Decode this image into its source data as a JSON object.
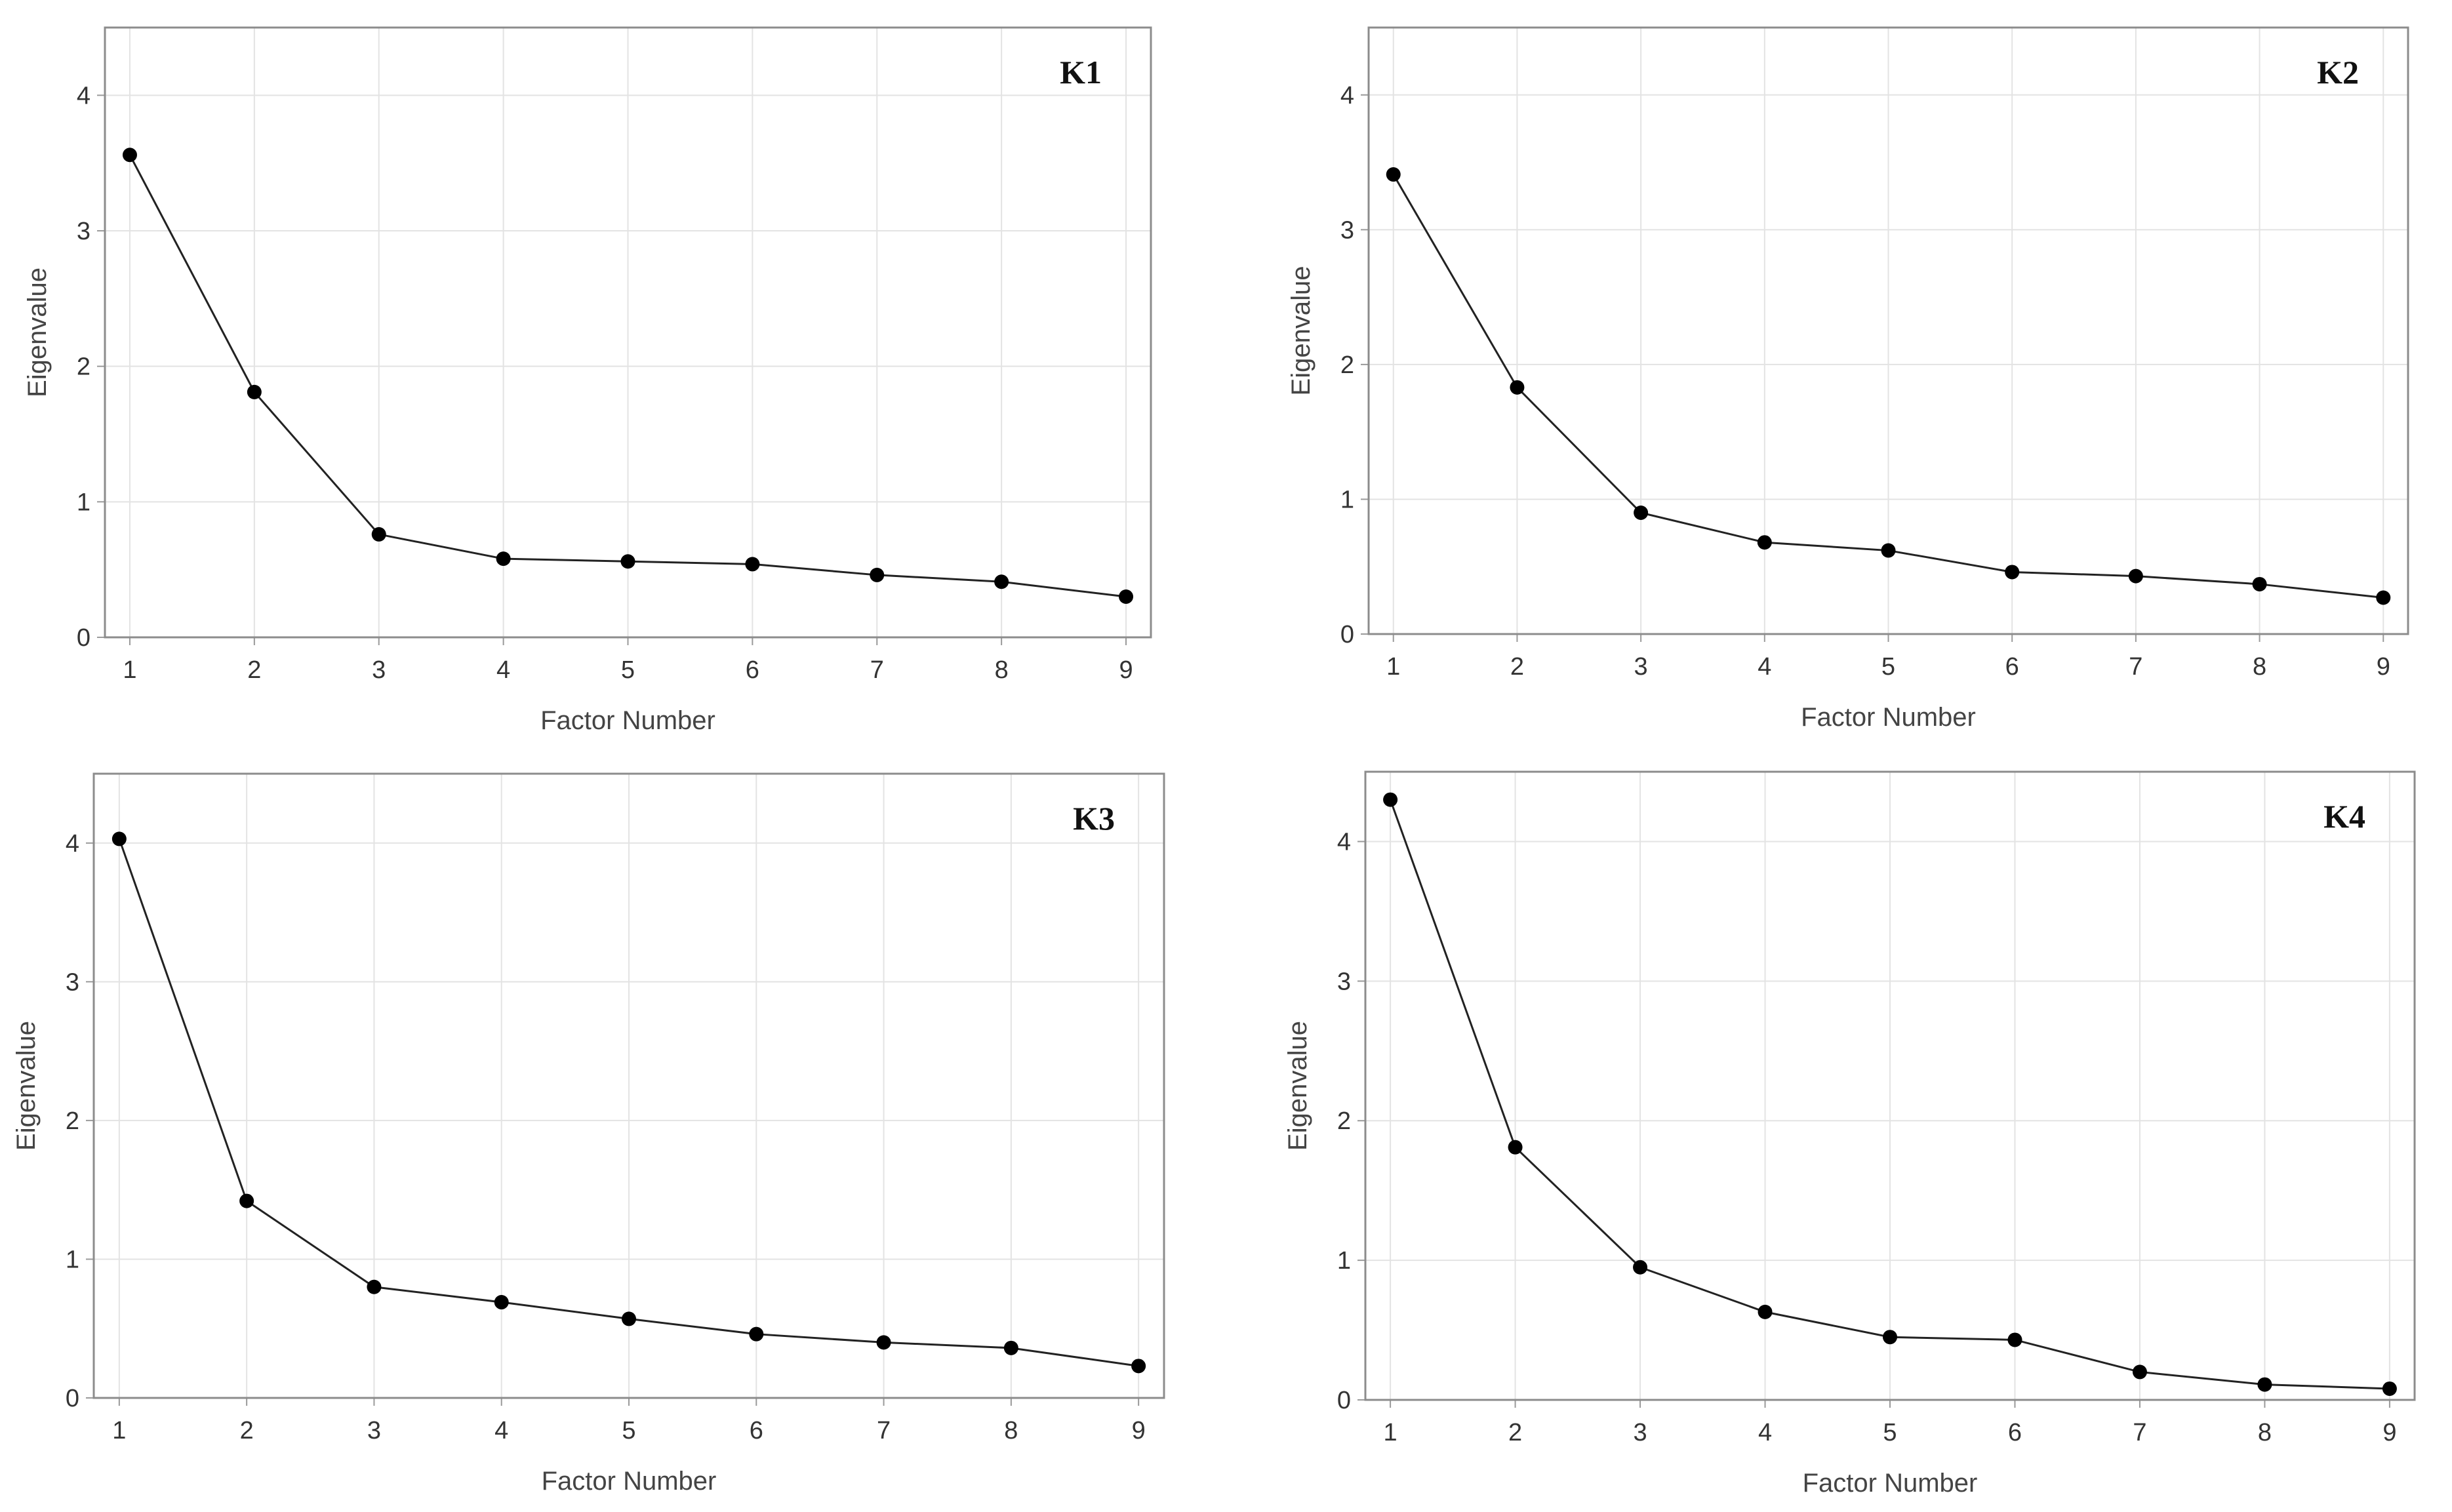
{
  "chart_data": [
    {
      "type": "line",
      "title": "K1",
      "xlabel": "Factor Number",
      "ylabel": "Eigenvalue",
      "x": [
        1,
        2,
        3,
        4,
        5,
        6,
        7,
        8,
        9
      ],
      "values": [
        3.56,
        1.81,
        0.76,
        0.58,
        0.56,
        0.54,
        0.46,
        0.41,
        0.3
      ],
      "xticks": [
        "1",
        "2",
        "3",
        "4",
        "5",
        "6",
        "7",
        "8",
        "9"
      ],
      "yticks": [
        "0",
        "1",
        "2",
        "3",
        "4"
      ],
      "xlim": [
        0.8,
        9.2
      ],
      "ylim": [
        0,
        4.5
      ],
      "grid": true,
      "marker_color": "#000000"
    },
    {
      "type": "line",
      "title": "K2",
      "xlabel": "Factor Number",
      "ylabel": "Eigenvalue",
      "x": [
        1,
        2,
        3,
        4,
        5,
        6,
        7,
        8,
        9
      ],
      "values": [
        3.41,
        1.83,
        0.9,
        0.68,
        0.62,
        0.46,
        0.43,
        0.37,
        0.27
      ],
      "xticks": [
        "1",
        "2",
        "3",
        "4",
        "5",
        "6",
        "7",
        "8",
        "9"
      ],
      "yticks": [
        "0",
        "1",
        "2",
        "3",
        "4"
      ],
      "xlim": [
        0.8,
        9.2
      ],
      "ylim": [
        0,
        4.5
      ],
      "grid": true,
      "marker_color": "#000000"
    },
    {
      "type": "line",
      "title": "K3",
      "xlabel": "Factor Number",
      "ylabel": "Eigenvalue",
      "x": [
        1,
        2,
        3,
        4,
        5,
        6,
        7,
        8,
        9
      ],
      "values": [
        4.03,
        1.42,
        0.8,
        0.69,
        0.57,
        0.46,
        0.4,
        0.36,
        0.23
      ],
      "xticks": [
        "1",
        "2",
        "3",
        "4",
        "5",
        "6",
        "7",
        "8",
        "9"
      ],
      "yticks": [
        "0",
        "1",
        "2",
        "3",
        "4"
      ],
      "xlim": [
        0.8,
        9.2
      ],
      "ylim": [
        0,
        4.5
      ],
      "grid": true,
      "marker_color": "#000000"
    },
    {
      "type": "line",
      "title": "K4",
      "xlabel": "Factor Number",
      "ylabel": "Eigenvalue",
      "x": [
        1,
        2,
        3,
        4,
        5,
        6,
        7,
        8,
        9
      ],
      "values": [
        4.3,
        1.81,
        0.95,
        0.63,
        0.45,
        0.43,
        0.2,
        0.11,
        0.08
      ],
      "xticks": [
        "1",
        "2",
        "3",
        "4",
        "5",
        "6",
        "7",
        "8",
        "9"
      ],
      "yticks": [
        "0",
        "1",
        "2",
        "3",
        "4"
      ],
      "xlim": [
        0.8,
        9.2
      ],
      "ylim": [
        0,
        4.5
      ],
      "grid": true,
      "marker_color": "#000000"
    }
  ]
}
